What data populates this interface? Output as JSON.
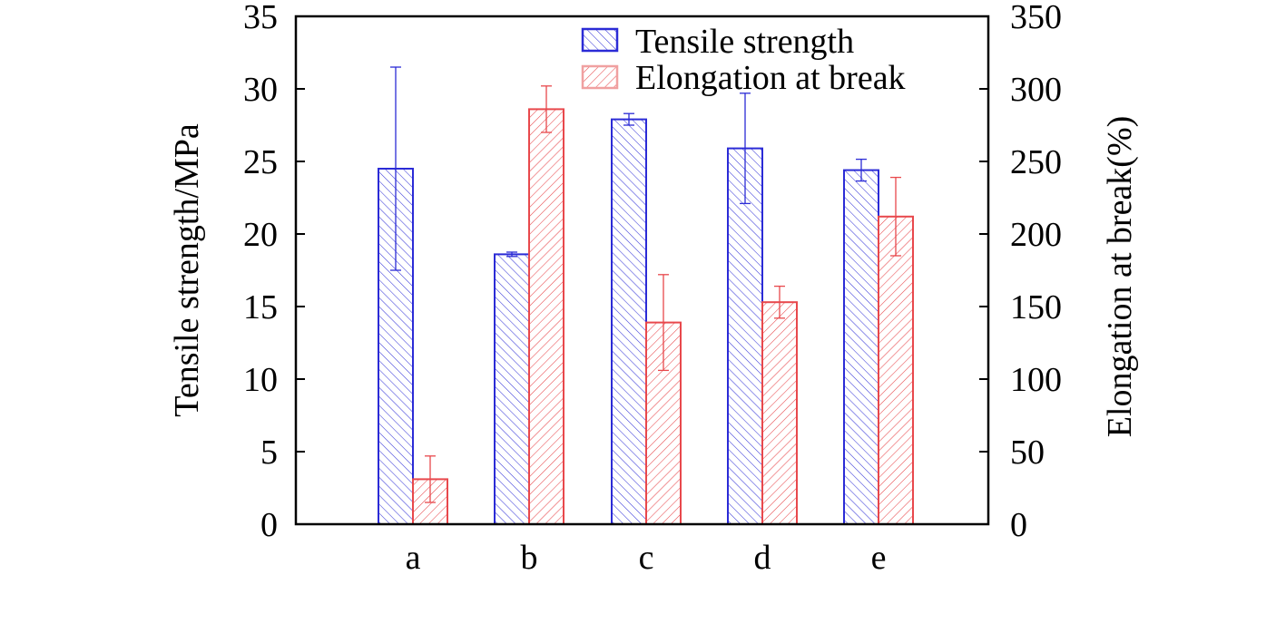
{
  "chart_data": {
    "type": "bar",
    "title": "",
    "xlabel": "",
    "categories": [
      "a",
      "b",
      "c",
      "d",
      "e"
    ],
    "y_left": {
      "label": "Tensile strength/MPa",
      "lim": [
        0,
        35
      ],
      "ticks": [
        0,
        5,
        10,
        15,
        20,
        25,
        30,
        35
      ]
    },
    "y_right": {
      "label": "Elongation at break(%)",
      "lim": [
        0,
        350
      ],
      "ticks": [
        0,
        50,
        100,
        150,
        200,
        250,
        300,
        350
      ]
    },
    "series": [
      {
        "name": "Tensile strength",
        "axis": "left",
        "color": "#2b2bd6",
        "hatch": "forward",
        "values": [
          24.5,
          18.6,
          27.9,
          25.9,
          24.4
        ],
        "errors": [
          7.0,
          0.15,
          0.4,
          3.8,
          0.75
        ]
      },
      {
        "name": "Elongation at break",
        "axis": "right",
        "color": "#e8484c",
        "hatch": "backward",
        "values": [
          31,
          286,
          139,
          153,
          212
        ],
        "errors": [
          16,
          16,
          33,
          11,
          27
        ]
      }
    ],
    "legend": {
      "position": "top-right"
    },
    "grid": false
  }
}
